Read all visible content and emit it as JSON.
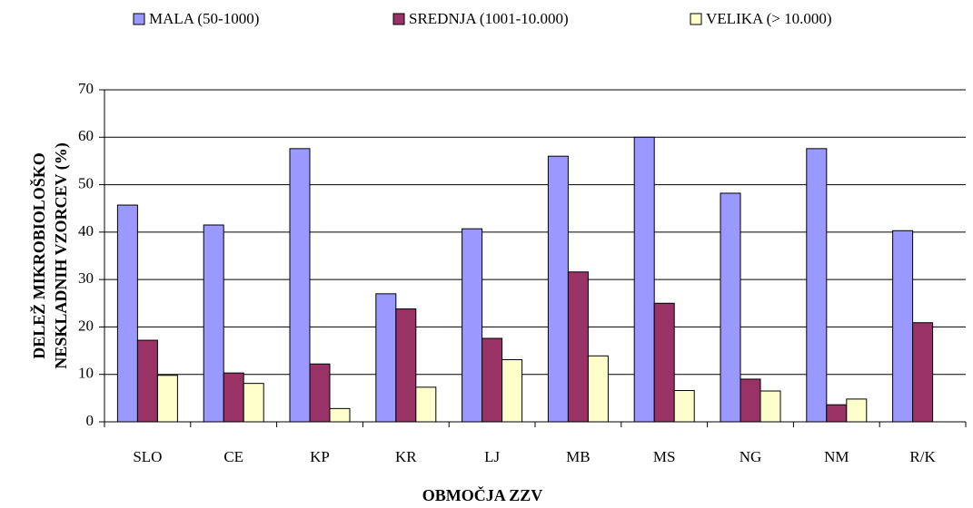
{
  "chart_data": {
    "type": "bar",
    "categories": [
      "SLO",
      "CE",
      "KP",
      "KR",
      "LJ",
      "MB",
      "MS",
      "NG",
      "NM",
      "R/K"
    ],
    "series": [
      {
        "name": "MALA (50-1000)",
        "color": "#9999ff",
        "values": [
          45.7,
          41.5,
          57.6,
          27,
          40.7,
          56,
          60,
          48.2,
          57.6,
          40.3
        ]
      },
      {
        "name": "SREDNJA (1001-10.000)",
        "color": "#993366",
        "values": [
          17.2,
          10.3,
          12.2,
          23.8,
          17.6,
          31.6,
          25,
          9,
          3.6,
          20.9
        ]
      },
      {
        "name": "VELIKA (> 10.000)",
        "color": "#ffffcc",
        "values": [
          9.8,
          8.1,
          2.8,
          7.3,
          13.1,
          13.9,
          6.6,
          6.5,
          4.8,
          null
        ]
      }
    ],
    "xlabel": "OBMOČJA ZZV",
    "ylabel": [
      "DELEŽ MIKROBIOLOŠKO",
      "NESKLADNIH VZORCEV (%)"
    ],
    "ylim": [
      0,
      70
    ],
    "yticks": [
      0,
      10,
      20,
      30,
      40,
      50,
      60,
      70
    ],
    "grid": true,
    "legend": "top"
  }
}
